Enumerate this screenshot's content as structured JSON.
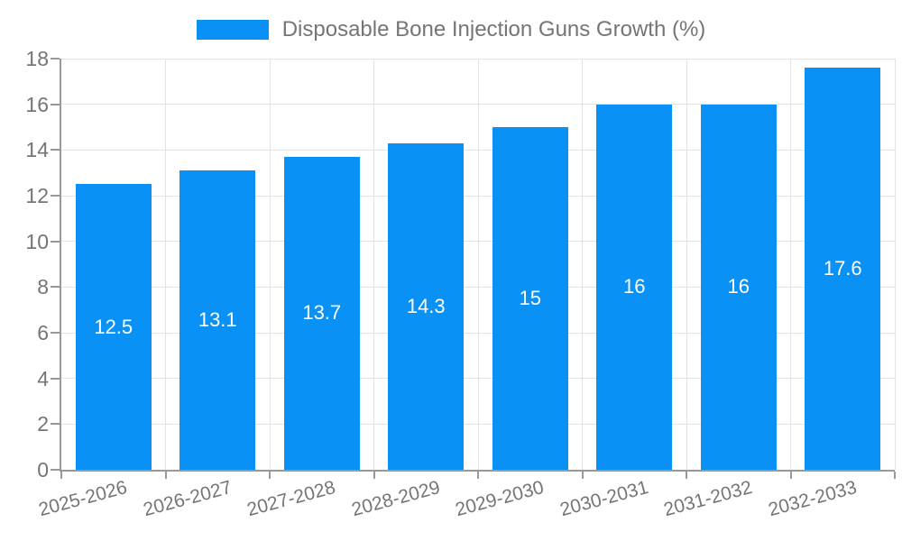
{
  "colors": {
    "bar": "#0a91f5",
    "grid": "#e3e3e3",
    "axis": "#999999",
    "text": "#757575",
    "value_text": "#ffffff",
    "background": "#ffffff"
  },
  "chart_data": {
    "type": "bar",
    "legend_label": "Disposable Bone Injection Guns Growth (%)",
    "categories": [
      "2025-2026",
      "2026-2027",
      "2027-2028",
      "2028-2029",
      "2029-2030",
      "2030-2031",
      "2031-2032",
      "2032-2033"
    ],
    "values": [
      12.5,
      13.1,
      13.7,
      14.3,
      15,
      16,
      16,
      17.6
    ],
    "title": "",
    "xlabel": "",
    "ylabel": "",
    "ylim": [
      0,
      18
    ],
    "ytick_step": 2,
    "grid": true,
    "legend_position": "top-center",
    "xlabel_rotation_deg": -15
  }
}
